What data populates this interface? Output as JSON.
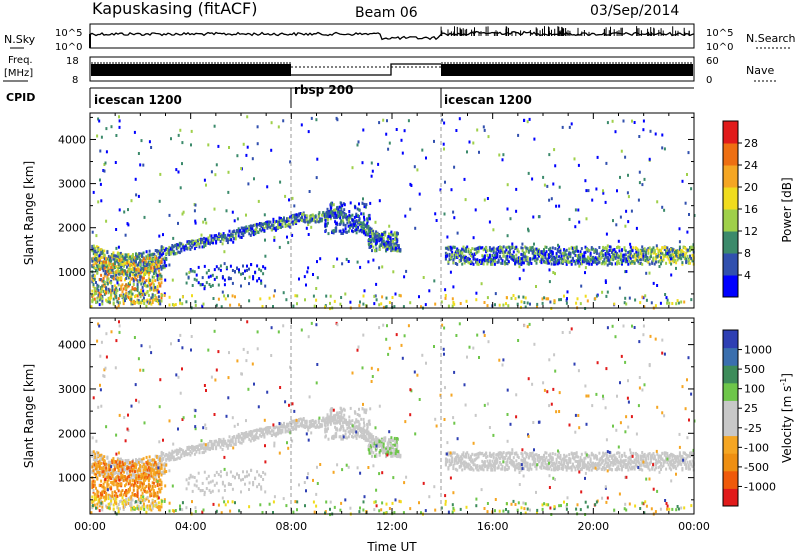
{
  "header": {
    "station": "Kapuskasing (fitACF)",
    "beam": "Beam 06",
    "date": "03/Sep/2014"
  },
  "noise_panel": {
    "left_label": "N.Sky",
    "right_label": "N.Search",
    "left_ticks": [
      "10^5",
      "10^0"
    ],
    "right_ticks": [
      "10^5",
      "10^0"
    ]
  },
  "freq_panel": {
    "left_label_1": "Freq.",
    "left_label_2": "[MHz]",
    "right_label": "Nave",
    "left_ticks": [
      "18",
      "8"
    ],
    "right_ticks": [
      "60",
      "0"
    ]
  },
  "cpid_panel": {
    "label": "CPID",
    "segments": [
      {
        "name": "icescan 1200",
        "start_h": 0,
        "end_h": 8
      },
      {
        "name": "rbsp 200",
        "start_h": 8,
        "end_h": 14
      },
      {
        "name": "icescan 1200",
        "start_h": 14,
        "end_h": 24
      }
    ]
  },
  "colors": {
    "power_scale": [
      "#0000ff",
      "#3150ae",
      "#3c8a6b",
      "#9fd04a",
      "#f0dc1e",
      "#f5a623",
      "#ee6f12",
      "#e11b1b"
    ],
    "velocity_scale": [
      "#2e3fb3",
      "#3a6fae",
      "#3d8c5a",
      "#6ec64a",
      "#c8c8c8",
      "#c8c8c8",
      "#f5a623",
      "#ee8f12",
      "#f05a0a",
      "#e11b1b"
    ]
  },
  "chart_data": [
    {
      "type": "heatmap",
      "name_hint": "power",
      "xlabel": "",
      "ylabel": "Slant Range [km]",
      "xlim": [
        0,
        24
      ],
      "ylim": [
        180,
        4600
      ],
      "y_ticks": [
        "1000",
        "2000",
        "3000",
        "4000"
      ],
      "colorbar": {
        "label": "Power [dB]",
        "tick_labels": [
          "4",
          "8",
          "12",
          "16",
          "20",
          "24",
          "28"
        ],
        "range": [
          0,
          32
        ]
      }
    },
    {
      "type": "heatmap",
      "name_hint": "velocity",
      "xlabel": "Time UT",
      "ylabel": "Slant Range [km]",
      "xlim": [
        0,
        24
      ],
      "ylim": [
        180,
        4600
      ],
      "x_ticks": [
        "00:00",
        "04:00",
        "08:00",
        "12:00",
        "16:00",
        "20:00",
        "00:00"
      ],
      "y_ticks": [
        "1000",
        "2000",
        "3000",
        "4000"
      ],
      "colorbar": {
        "label": "Velocity [m s",
        "label_sup": "-1",
        "label_end": "]",
        "tick_labels": [
          "1000",
          "500",
          "100",
          "25",
          "-25",
          "-100",
          "-500",
          "-1000"
        ]
      }
    }
  ]
}
